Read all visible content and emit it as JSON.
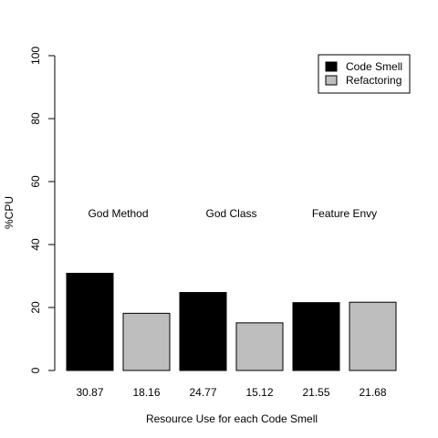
{
  "chart_data": {
    "type": "bar",
    "title": "",
    "xlabel": "Resource Use for each Code Smell",
    "ylabel": "%CPU",
    "ylim": [
      0,
      100
    ],
    "yticks": [
      0,
      20,
      40,
      60,
      80,
      100
    ],
    "grid": false,
    "legend_position": "top-right",
    "groups": [
      "God Method",
      "God Class",
      "Feature Envy"
    ],
    "series": [
      {
        "name": "Code Smell",
        "color": "#000000",
        "values": [
          30.87,
          24.77,
          21.55
        ]
      },
      {
        "name": "Refactoring",
        "color": "#bebebe",
        "values": [
          18.16,
          15.12,
          21.68
        ]
      }
    ],
    "bar_labels": [
      "30.87",
      "18.16",
      "24.77",
      "15.12",
      "21.55",
      "21.68"
    ]
  }
}
